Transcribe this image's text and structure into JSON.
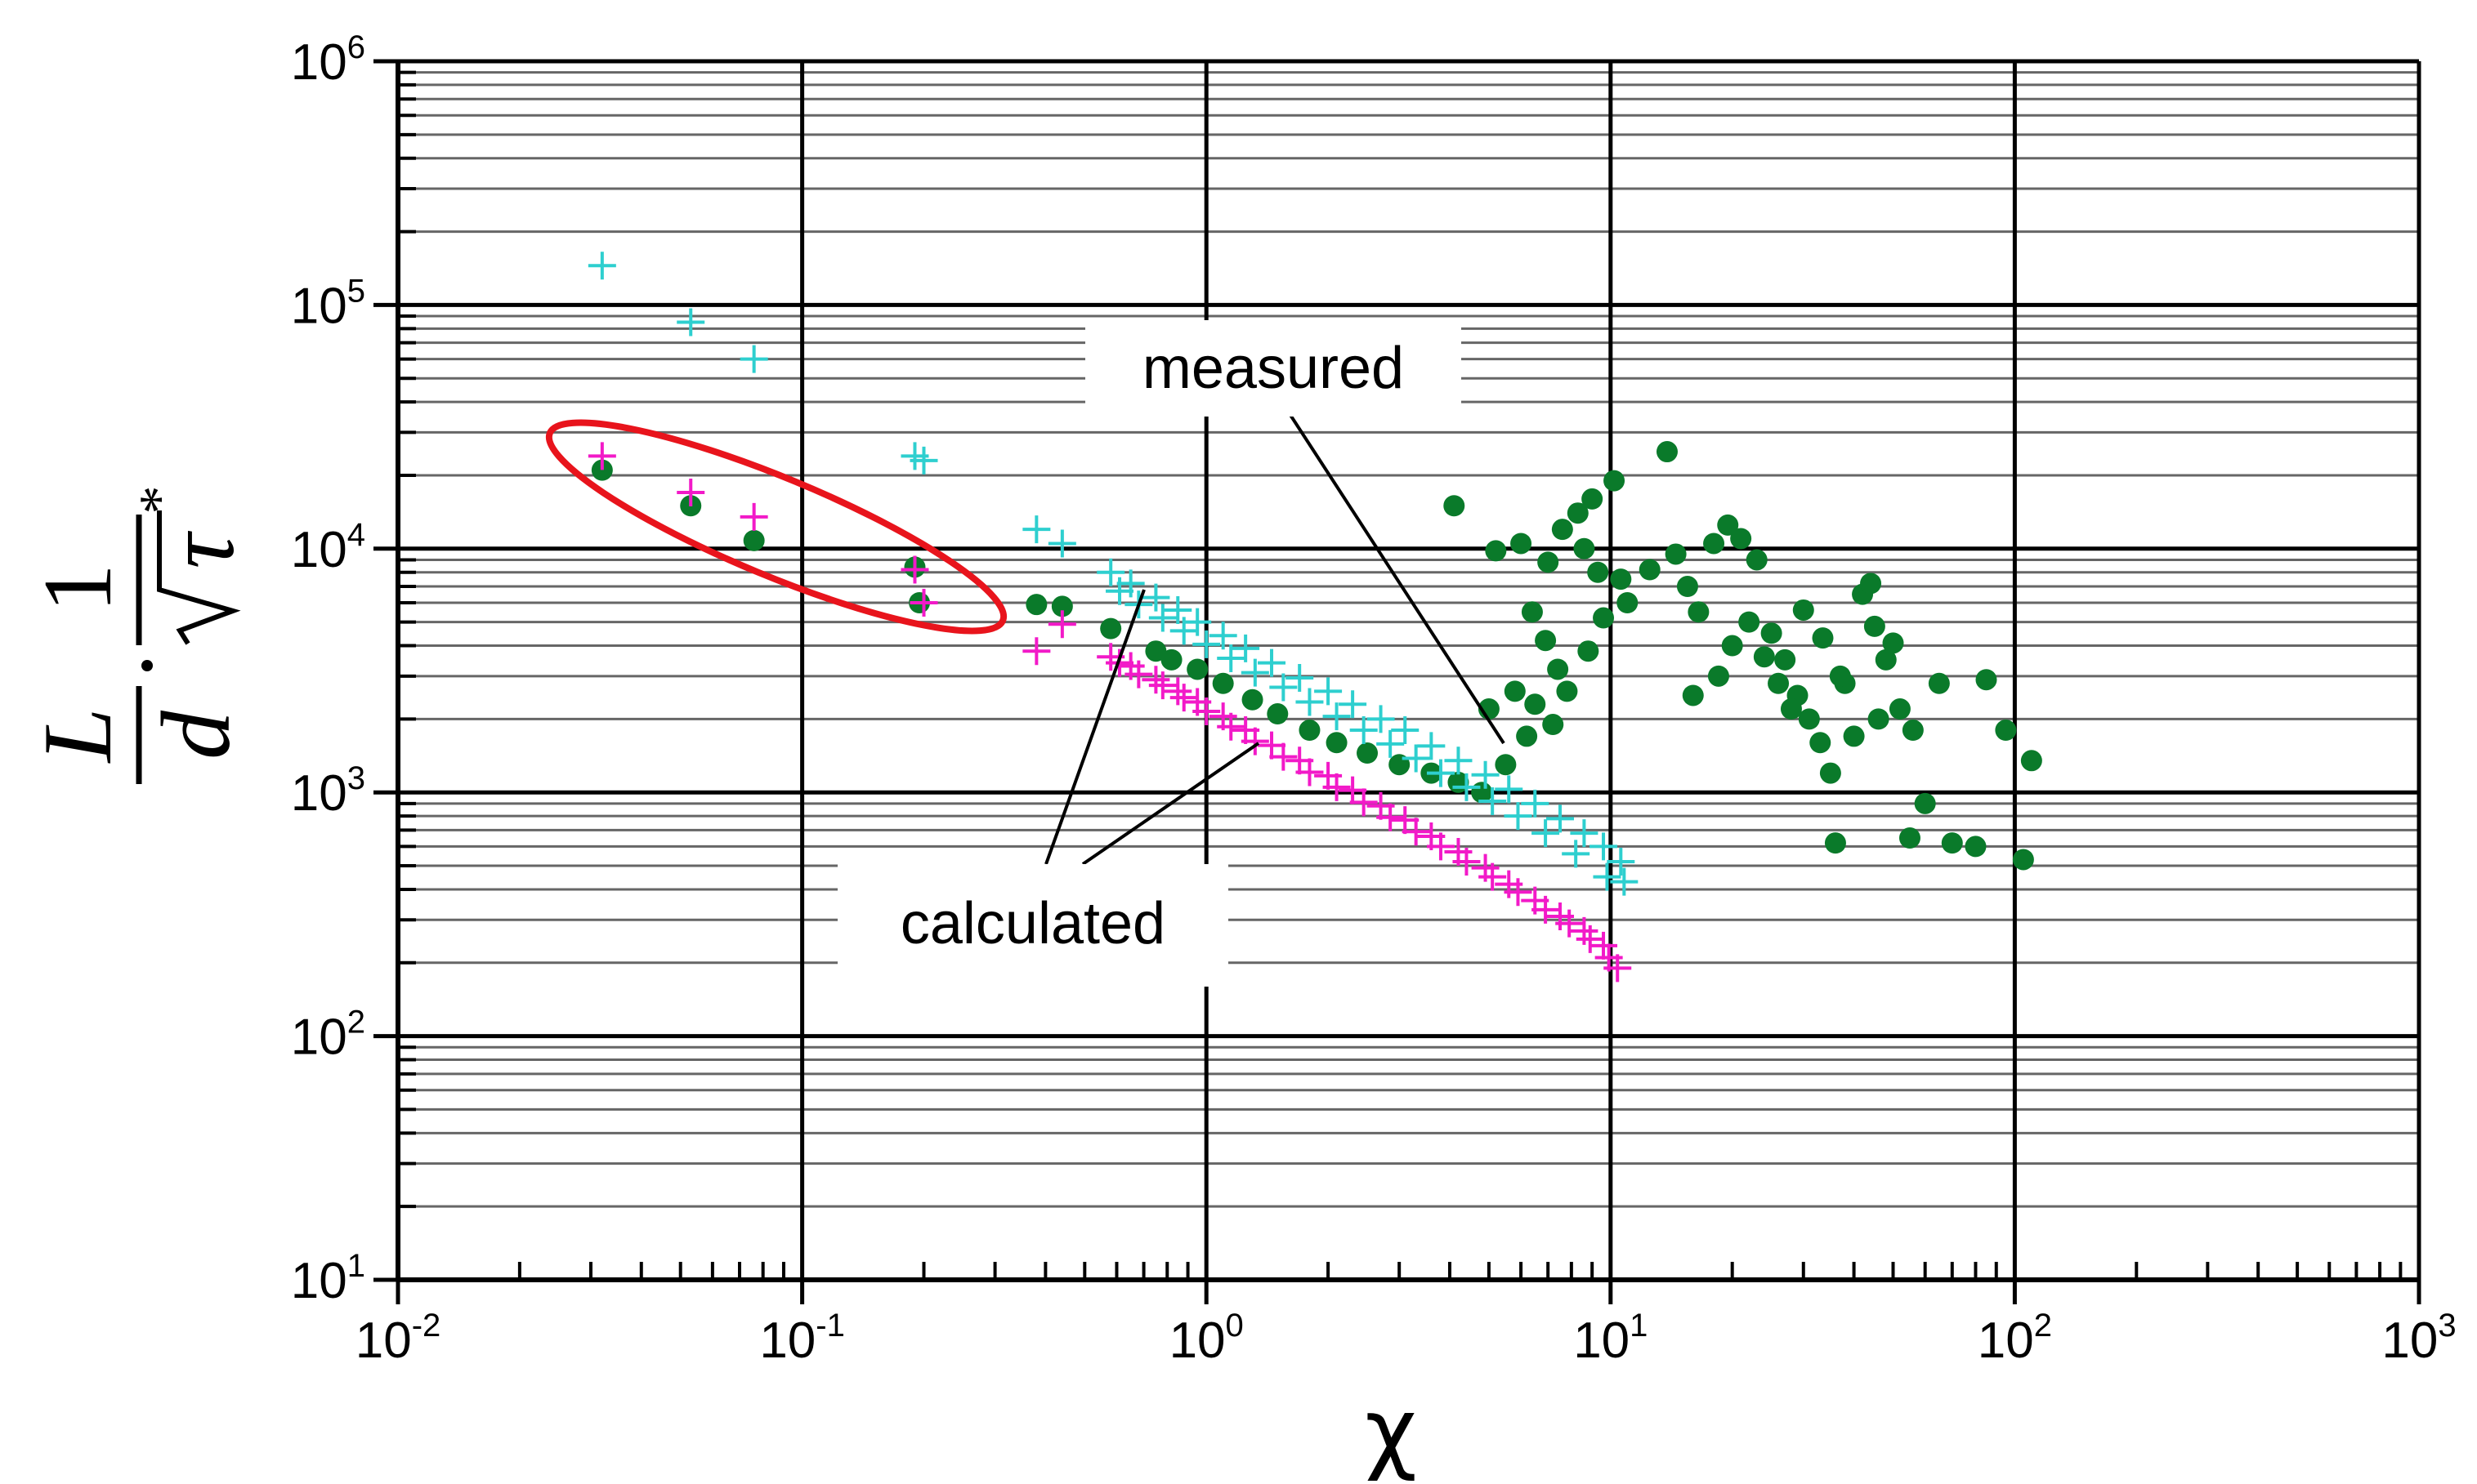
{
  "chart_data": {
    "type": "scatter",
    "xlabel": "χ",
    "ylabel": {
      "numerator_L": "L",
      "denominator_d": "d",
      "numerator_1": "1",
      "denominator_tau": "τ",
      "star": "*"
    },
    "xscale": "log",
    "yscale": "log",
    "xlim": [
      0.01,
      1000
    ],
    "ylim": [
      10,
      1000000
    ],
    "grid": true,
    "x_ticks": [
      {
        "base": "10",
        "exp": "-2"
      },
      {
        "base": "10",
        "exp": "-1"
      },
      {
        "base": "10",
        "exp": "0"
      },
      {
        "base": "10",
        "exp": "1"
      },
      {
        "base": "10",
        "exp": "2"
      },
      {
        "base": "10",
        "exp": "3"
      }
    ],
    "y_ticks": [
      {
        "base": "10",
        "exp": "1"
      },
      {
        "base": "10",
        "exp": "2"
      },
      {
        "base": "10",
        "exp": "3"
      },
      {
        "base": "10",
        "exp": "4"
      },
      {
        "base": "10",
        "exp": "5"
      },
      {
        "base": "10",
        "exp": "6"
      }
    ],
    "annotations": [
      {
        "text": "measured"
      },
      {
        "text": "calculated"
      }
    ],
    "highlight": {
      "shape": "ellipse",
      "color": "#e8141c"
    },
    "series": [
      {
        "marker": "circle",
        "color": "#0a7a2a",
        "points": [
          [
            0.032,
            21000
          ],
          [
            0.053,
            15000
          ],
          [
            0.076,
            10800
          ],
          [
            0.19,
            8400
          ],
          [
            0.195,
            6000
          ],
          [
            0.38,
            5900
          ],
          [
            0.44,
            5800
          ],
          [
            0.58,
            4700
          ],
          [
            0.75,
            3800
          ],
          [
            0.82,
            3500
          ],
          [
            0.95,
            3200
          ],
          [
            1.1,
            2800
          ],
          [
            1.3,
            2400
          ],
          [
            1.5,
            2100
          ],
          [
            1.8,
            1800
          ],
          [
            2.1,
            1600
          ],
          [
            2.5,
            1450
          ],
          [
            3.0,
            1300
          ],
          [
            3.6,
            1200
          ],
          [
            4.2,
            1100
          ],
          [
            4.8,
            1000
          ],
          [
            5.5,
            1300
          ],
          [
            6.2,
            1700
          ],
          [
            5.0,
            2200
          ],
          [
            5.8,
            2600
          ],
          [
            6.5,
            2300
          ],
          [
            7.2,
            1900
          ],
          [
            7.8,
            2600
          ],
          [
            4.1,
            15000
          ],
          [
            5.2,
            9800
          ],
          [
            6.0,
            10500
          ],
          [
            7.0,
            8800
          ],
          [
            7.6,
            12000
          ],
          [
            8.3,
            14000
          ],
          [
            9.0,
            16000
          ],
          [
            10.2,
            19000
          ],
          [
            8.6,
            10000
          ],
          [
            9.3,
            8000
          ],
          [
            10.6,
            7500
          ],
          [
            6.4,
            5500
          ],
          [
            6.9,
            4200
          ],
          [
            7.4,
            3200
          ],
          [
            8.8,
            3800
          ],
          [
            9.6,
            5200
          ],
          [
            11.0,
            6000
          ],
          [
            12.5,
            8200
          ],
          [
            13.8,
            25000
          ],
          [
            14.5,
            9500
          ],
          [
            15.5,
            7000
          ],
          [
            16.5,
            5500
          ],
          [
            18.0,
            10500
          ],
          [
            19.5,
            12500
          ],
          [
            21.0,
            11000
          ],
          [
            23.0,
            9000
          ],
          [
            25.0,
            4500
          ],
          [
            27.0,
            3500
          ],
          [
            29.0,
            2500
          ],
          [
            31.0,
            2000
          ],
          [
            33.0,
            1600
          ],
          [
            35.0,
            1200
          ],
          [
            38.0,
            2800
          ],
          [
            42.0,
            6500
          ],
          [
            45.0,
            4800
          ],
          [
            48.0,
            3500
          ],
          [
            52.0,
            2200
          ],
          [
            56.0,
            1800
          ],
          [
            60.0,
            900
          ],
          [
            36.0,
            620
          ],
          [
            55.0,
            650
          ],
          [
            70.0,
            620
          ],
          [
            80.0,
            600
          ],
          [
            85.0,
            2900
          ],
          [
            95.0,
            1800
          ],
          [
            110.0,
            1350
          ],
          [
            105.0,
            530
          ],
          [
            16.0,
            2500
          ],
          [
            18.5,
            3000
          ],
          [
            20.0,
            4000
          ],
          [
            22.0,
            5000
          ],
          [
            24.0,
            3600
          ],
          [
            26.0,
            2800
          ],
          [
            28.0,
            2200
          ],
          [
            30.0,
            5600
          ],
          [
            33.5,
            4300
          ],
          [
            37.0,
            3000
          ],
          [
            40.0,
            1700
          ],
          [
            44.0,
            7200
          ],
          [
            46.0,
            2000
          ],
          [
            50.0,
            4100
          ],
          [
            65.0,
            2800
          ]
        ]
      },
      {
        "marker": "plus",
        "color": "#2ecfcf",
        "points": [
          [
            0.032,
            145000
          ],
          [
            0.053,
            85000
          ],
          [
            0.076,
            60000
          ],
          [
            0.19,
            24000
          ],
          [
            0.2,
            23000
          ],
          [
            0.38,
            12000
          ],
          [
            0.44,
            10500
          ],
          [
            0.58,
            8000
          ],
          [
            0.65,
            7200
          ],
          [
            0.75,
            6300
          ],
          [
            0.85,
            5600
          ],
          [
            0.95,
            5000
          ],
          [
            1.1,
            4400
          ],
          [
            1.25,
            3900
          ],
          [
            1.45,
            3400
          ],
          [
            1.7,
            2950
          ],
          [
            2.0,
            2600
          ],
          [
            2.3,
            2300
          ],
          [
            2.7,
            2000
          ],
          [
            3.1,
            1800
          ],
          [
            3.6,
            1550
          ],
          [
            4.2,
            1350
          ],
          [
            4.9,
            1180
          ],
          [
            5.6,
            1030
          ],
          [
            6.5,
            900
          ],
          [
            7.5,
            780
          ],
          [
            8.6,
            680
          ],
          [
            9.6,
            600
          ],
          [
            10.6,
            520
          ],
          [
            10.8,
            430
          ],
          [
            9.8,
            450
          ],
          [
            8.2,
            560
          ],
          [
            6.9,
            680
          ],
          [
            5.9,
            800
          ],
          [
            5.1,
            920
          ],
          [
            4.4,
            1050
          ],
          [
            3.8,
            1200
          ],
          [
            3.3,
            1380
          ],
          [
            2.85,
            1580
          ],
          [
            2.45,
            1800
          ],
          [
            2.1,
            2050
          ],
          [
            1.8,
            2350
          ],
          [
            1.55,
            2700
          ],
          [
            1.32,
            3100
          ],
          [
            1.15,
            3550
          ],
          [
            1.0,
            4050
          ],
          [
            0.88,
            4600
          ],
          [
            0.78,
            5200
          ],
          [
            0.68,
            5900
          ],
          [
            0.61,
            6700
          ]
        ]
      },
      {
        "marker": "plus",
        "color": "#f21ac8",
        "points": [
          [
            0.032,
            24000
          ],
          [
            0.053,
            17000
          ],
          [
            0.076,
            13500
          ],
          [
            0.19,
            8200
          ],
          [
            0.2,
            6000
          ],
          [
            0.38,
            3800
          ],
          [
            0.44,
            4900
          ],
          [
            0.58,
            3600
          ],
          [
            0.65,
            3300
          ],
          [
            0.75,
            2900
          ],
          [
            0.85,
            2600
          ],
          [
            0.95,
            2350
          ],
          [
            1.1,
            2050
          ],
          [
            1.25,
            1800
          ],
          [
            1.45,
            1560
          ],
          [
            1.7,
            1350
          ],
          [
            2.0,
            1170
          ],
          [
            2.3,
            1020
          ],
          [
            2.7,
            880
          ],
          [
            3.1,
            770
          ],
          [
            3.6,
            660
          ],
          [
            4.2,
            570
          ],
          [
            4.9,
            490
          ],
          [
            5.6,
            420
          ],
          [
            6.5,
            360
          ],
          [
            7.5,
            310
          ],
          [
            8.6,
            270
          ],
          [
            9.6,
            235
          ],
          [
            10.4,
            190
          ],
          [
            9.9,
            210
          ],
          [
            8.9,
            250
          ],
          [
            7.9,
            290
          ],
          [
            6.9,
            330
          ],
          [
            5.9,
            390
          ],
          [
            5.1,
            450
          ],
          [
            4.4,
            520
          ],
          [
            3.8,
            600
          ],
          [
            3.3,
            690
          ],
          [
            2.85,
            790
          ],
          [
            2.45,
            910
          ],
          [
            2.1,
            1050
          ],
          [
            1.8,
            1210
          ],
          [
            1.55,
            1400
          ],
          [
            1.32,
            1620
          ],
          [
            1.15,
            1860
          ],
          [
            1.0,
            2150
          ],
          [
            0.88,
            2450
          ],
          [
            0.78,
            2750
          ],
          [
            0.68,
            3050
          ],
          [
            0.61,
            3400
          ]
        ]
      }
    ]
  }
}
